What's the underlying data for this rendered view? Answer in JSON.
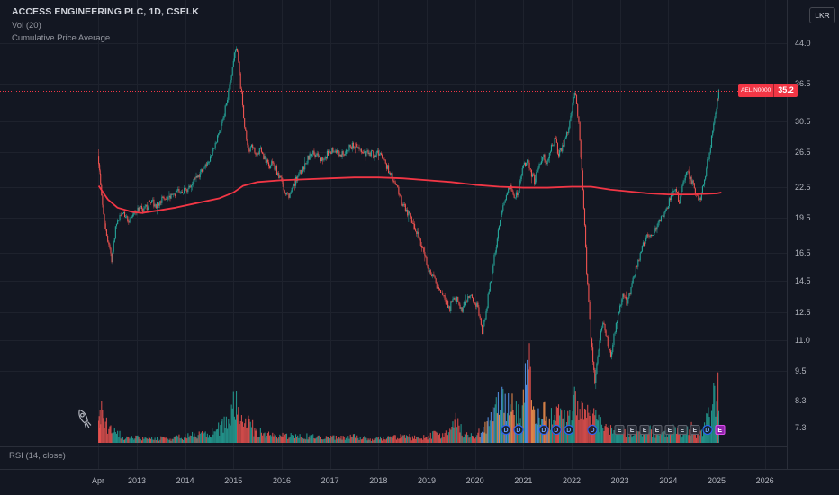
{
  "header": {
    "symbol_title": "ACCESS ENGINEERING PLC, 1D, CSELK",
    "volume_indicator": "Vol (20)",
    "average_indicator": "Cumulative Price Average"
  },
  "axes": {
    "currency_badge": "LKR",
    "price_ticks": [
      "44.0",
      "36.5",
      "30.5",
      "26.5",
      "22.5",
      "19.5",
      "16.5",
      "14.5",
      "12.5",
      "11.0",
      "9.5",
      "8.3",
      "7.3"
    ],
    "time_ticks": [
      {
        "label": "Apr",
        "t": 2012.2
      },
      {
        "label": "2013",
        "t": 2013
      },
      {
        "label": "2014",
        "t": 2014
      },
      {
        "label": "2015",
        "t": 2015
      },
      {
        "label": "2016",
        "t": 2016
      },
      {
        "label": "2017",
        "t": 2017
      },
      {
        "label": "2018",
        "t": 2018
      },
      {
        "label": "2019",
        "t": 2019
      },
      {
        "label": "2020",
        "t": 2020
      },
      {
        "label": "2021",
        "t": 2021
      },
      {
        "label": "2022",
        "t": 2022
      },
      {
        "label": "2023",
        "t": 2023
      },
      {
        "label": "2024",
        "t": 2024
      },
      {
        "label": "2025",
        "t": 2025
      },
      {
        "label": "2026",
        "t": 2026
      }
    ]
  },
  "price_line": {
    "symbol_label": "AEL.N0000",
    "price": "35.2",
    "value": 35.2
  },
  "bottom": {
    "rsi_label": "RSI (14, close)"
  },
  "markers": [
    {
      "kind": "dividend-circle",
      "letter": "D",
      "t": 2020.64
    },
    {
      "kind": "dividend-circle",
      "letter": "D",
      "t": 2020.9
    },
    {
      "kind": "dividend-circle",
      "letter": "D",
      "t": 2021.42
    },
    {
      "kind": "dividend-circle",
      "letter": "D",
      "t": 2021.68
    },
    {
      "kind": "dividend-circle",
      "letter": "D",
      "t": 2021.94
    },
    {
      "kind": "dividend-circle",
      "letter": "D",
      "t": 2022.43
    },
    {
      "kind": "earnings-square",
      "letter": "E",
      "t": 2022.99
    },
    {
      "kind": "earnings-square",
      "letter": "E",
      "t": 2023.25
    },
    {
      "kind": "earnings-square",
      "letter": "E",
      "t": 2023.51
    },
    {
      "kind": "earnings-square",
      "letter": "E",
      "t": 2023.77
    },
    {
      "kind": "earnings-square",
      "letter": "E",
      "t": 2024.03
    },
    {
      "kind": "earnings-square",
      "letter": "E",
      "t": 2024.29
    },
    {
      "kind": "earnings-square",
      "letter": "E",
      "t": 2024.55
    },
    {
      "kind": "dividend-circle",
      "letter": "D",
      "t": 2024.81
    },
    {
      "kind": "earnings-upcoming-square",
      "letter": "E",
      "t": 2025.07
    }
  ],
  "colors": {
    "background": "#131722",
    "grid": "#1e222d",
    "border": "#2a2e39",
    "text_primary": "#d1d4dc",
    "text_secondary": "#9598a1",
    "axis_text": "#b2b5be",
    "up": "#26a69a",
    "down": "#ef5350",
    "average_line": "#f23645",
    "price_badge": "#f23645",
    "accent_blue": "#5b9cf6",
    "alt_volume_orange": "#ff9850",
    "marker_purple": "#8e24aa"
  },
  "chart_data": {
    "type": "candlestick",
    "title": "ACCESS ENGINEERING PLC",
    "symbol": "AEL.N0000",
    "timeframe": "1D",
    "exchange": "CSELK",
    "currency": "LKR",
    "scale": "log",
    "x_range": [
      2012.2,
      2026.4
    ],
    "y_range": [
      7.0,
      46.5
    ],
    "last_price": 35.2,
    "legend": [
      "Vol (20)",
      "Cumulative Price Average"
    ],
    "monthly_closes": [
      [
        2012.21,
        26.0,
        0.22
      ],
      [
        2012.25,
        24.0,
        0.3
      ],
      [
        2012.33,
        19.5,
        0.18
      ],
      [
        2012.42,
        17.5,
        0.12
      ],
      [
        2012.5,
        15.8,
        0.1
      ],
      [
        2012.58,
        18.5,
        0.08
      ],
      [
        2012.67,
        19.5,
        0.06
      ],
      [
        2012.75,
        20.0,
        0.05
      ],
      [
        2012.83,
        19.2,
        0.05
      ],
      [
        2012.92,
        19.6,
        0.05
      ],
      [
        2013.0,
        20.0,
        0.05
      ],
      [
        2013.08,
        20.4,
        0.04
      ],
      [
        2013.17,
        20.1,
        0.04
      ],
      [
        2013.25,
        20.6,
        0.05
      ],
      [
        2013.33,
        21.0,
        0.04
      ],
      [
        2013.42,
        20.6,
        0.04
      ],
      [
        2013.5,
        21.0,
        0.05
      ],
      [
        2013.58,
        21.4,
        0.05
      ],
      [
        2013.67,
        21.1,
        0.04
      ],
      [
        2013.75,
        21.5,
        0.05
      ],
      [
        2013.83,
        21.9,
        0.06
      ],
      [
        2013.92,
        22.3,
        0.06
      ],
      [
        2014.0,
        22.0,
        0.07
      ],
      [
        2014.08,
        22.4,
        0.08
      ],
      [
        2014.17,
        22.9,
        0.08
      ],
      [
        2014.25,
        23.4,
        0.09
      ],
      [
        2014.33,
        23.9,
        0.08
      ],
      [
        2014.42,
        24.4,
        0.09
      ],
      [
        2014.5,
        25.3,
        0.1
      ],
      [
        2014.58,
        26.4,
        0.12
      ],
      [
        2014.67,
        27.8,
        0.14
      ],
      [
        2014.75,
        29.5,
        0.18
      ],
      [
        2014.83,
        31.8,
        0.26
      ],
      [
        2014.92,
        34.8,
        0.32
      ],
      [
        2015.0,
        39.5,
        0.38
      ],
      [
        2015.08,
        43.5,
        0.3
      ],
      [
        2015.17,
        36.0,
        0.24
      ],
      [
        2015.25,
        30.0,
        0.2
      ],
      [
        2015.33,
        26.5,
        0.16
      ],
      [
        2015.42,
        27.2,
        0.12
      ],
      [
        2015.5,
        26.2,
        0.1
      ],
      [
        2015.58,
        26.8,
        0.09
      ],
      [
        2015.67,
        25.6,
        0.08
      ],
      [
        2015.75,
        24.6,
        0.08
      ],
      [
        2015.83,
        25.1,
        0.07
      ],
      [
        2015.92,
        24.2,
        0.07
      ],
      [
        2016.0,
        23.2,
        0.08
      ],
      [
        2016.08,
        22.2,
        0.07
      ],
      [
        2016.17,
        21.3,
        0.08
      ],
      [
        2016.25,
        22.4,
        0.06
      ],
      [
        2016.33,
        23.4,
        0.06
      ],
      [
        2016.42,
        24.1,
        0.06
      ],
      [
        2016.5,
        25.0,
        0.07
      ],
      [
        2016.58,
        25.9,
        0.07
      ],
      [
        2016.67,
        26.4,
        0.06
      ],
      [
        2016.75,
        26.0,
        0.05
      ],
      [
        2016.83,
        25.5,
        0.05
      ],
      [
        2016.92,
        26.0,
        0.05
      ],
      [
        2017.0,
        26.4,
        0.06
      ],
      [
        2017.08,
        26.9,
        0.06
      ],
      [
        2017.17,
        26.5,
        0.05
      ],
      [
        2017.25,
        26.1,
        0.05
      ],
      [
        2017.33,
        26.6,
        0.05
      ],
      [
        2017.42,
        27.0,
        0.06
      ],
      [
        2017.5,
        27.4,
        0.06
      ],
      [
        2017.58,
        26.9,
        0.05
      ],
      [
        2017.67,
        26.5,
        0.05
      ],
      [
        2017.75,
        26.1,
        0.04
      ],
      [
        2017.83,
        26.5,
        0.04
      ],
      [
        2017.92,
        26.1,
        0.04
      ],
      [
        2018.0,
        26.5,
        0.05
      ],
      [
        2018.08,
        26.0,
        0.05
      ],
      [
        2018.17,
        25.1,
        0.06
      ],
      [
        2018.25,
        24.1,
        0.06
      ],
      [
        2018.33,
        23.1,
        0.06
      ],
      [
        2018.42,
        22.1,
        0.06
      ],
      [
        2018.5,
        21.1,
        0.06
      ],
      [
        2018.58,
        20.2,
        0.06
      ],
      [
        2018.67,
        19.6,
        0.05
      ],
      [
        2018.75,
        19.0,
        0.05
      ],
      [
        2018.83,
        18.1,
        0.06
      ],
      [
        2018.92,
        17.1,
        0.06
      ],
      [
        2019.0,
        16.1,
        0.07
      ],
      [
        2019.08,
        15.1,
        0.08
      ],
      [
        2019.17,
        14.6,
        0.08
      ],
      [
        2019.25,
        14.1,
        0.08
      ],
      [
        2019.33,
        13.6,
        0.09
      ],
      [
        2019.42,
        13.1,
        0.1
      ],
      [
        2019.5,
        12.8,
        0.16
      ],
      [
        2019.58,
        13.6,
        0.2
      ],
      [
        2019.67,
        13.1,
        0.14
      ],
      [
        2019.75,
        12.7,
        0.1
      ],
      [
        2019.83,
        13.1,
        0.1
      ],
      [
        2019.92,
        13.5,
        0.08
      ],
      [
        2020.0,
        13.2,
        0.08
      ],
      [
        2020.08,
        12.8,
        0.1
      ],
      [
        2020.17,
        11.2,
        0.14
      ],
      [
        2020.25,
        12.6,
        0.18
      ],
      [
        2020.33,
        14.2,
        0.3
      ],
      [
        2020.42,
        16.2,
        0.38
      ],
      [
        2020.5,
        18.2,
        0.42
      ],
      [
        2020.58,
        20.2,
        0.4
      ],
      [
        2020.67,
        21.6,
        0.36
      ],
      [
        2020.75,
        22.6,
        0.34
      ],
      [
        2020.83,
        21.2,
        0.28
      ],
      [
        2020.92,
        22.2,
        0.3
      ],
      [
        2021.0,
        24.2,
        0.55
      ],
      [
        2021.08,
        25.6,
        1.0
      ],
      [
        2021.17,
        24.2,
        0.45
      ],
      [
        2021.25,
        23.2,
        0.35
      ],
      [
        2021.33,
        24.6,
        0.3
      ],
      [
        2021.42,
        26.0,
        0.28
      ],
      [
        2021.5,
        25.1,
        0.24
      ],
      [
        2021.58,
        26.6,
        0.26
      ],
      [
        2021.67,
        28.2,
        0.3
      ],
      [
        2021.75,
        26.2,
        0.24
      ],
      [
        2021.83,
        27.2,
        0.22
      ],
      [
        2021.92,
        28.8,
        0.26
      ],
      [
        2022.0,
        31.2,
        0.4
      ],
      [
        2022.08,
        35.2,
        0.46
      ],
      [
        2022.17,
        30.2,
        0.36
      ],
      [
        2022.25,
        22.2,
        0.3
      ],
      [
        2022.33,
        15.2,
        0.28
      ],
      [
        2022.42,
        11.2,
        0.26
      ],
      [
        2022.5,
        9.0,
        0.24
      ],
      [
        2022.58,
        10.6,
        0.22
      ],
      [
        2022.67,
        12.1,
        0.2
      ],
      [
        2022.75,
        11.1,
        0.14
      ],
      [
        2022.83,
        10.1,
        0.12
      ],
      [
        2022.92,
        11.6,
        0.12
      ],
      [
        2023.0,
        12.6,
        0.12
      ],
      [
        2023.08,
        13.6,
        0.12
      ],
      [
        2023.17,
        13.1,
        0.1
      ],
      [
        2023.25,
        14.1,
        0.1
      ],
      [
        2023.33,
        15.1,
        0.1
      ],
      [
        2023.42,
        16.1,
        0.1
      ],
      [
        2023.5,
        17.1,
        0.12
      ],
      [
        2023.58,
        18.1,
        0.12
      ],
      [
        2023.67,
        17.6,
        0.1
      ],
      [
        2023.75,
        18.6,
        0.1
      ],
      [
        2023.83,
        19.1,
        0.1
      ],
      [
        2023.92,
        19.6,
        0.1
      ],
      [
        2024.0,
        20.6,
        0.12
      ],
      [
        2024.08,
        21.6,
        0.14
      ],
      [
        2024.17,
        22.1,
        0.12
      ],
      [
        2024.25,
        21.1,
        0.1
      ],
      [
        2024.33,
        22.6,
        0.12
      ],
      [
        2024.42,
        24.2,
        0.16
      ],
      [
        2024.5,
        23.1,
        0.12
      ],
      [
        2024.58,
        22.1,
        0.1
      ],
      [
        2024.67,
        21.1,
        0.12
      ],
      [
        2024.75,
        22.6,
        0.2
      ],
      [
        2024.83,
        25.2,
        0.34
      ],
      [
        2024.92,
        28.2,
        0.42
      ],
      [
        2025.0,
        32.0,
        0.48
      ],
      [
        2025.06,
        35.2,
        0.4
      ]
    ],
    "cumulative_price_average": [
      [
        2012.21,
        22.6
      ],
      [
        2012.4,
        21.2
      ],
      [
        2012.6,
        20.4
      ],
      [
        2012.9,
        20.0
      ],
      [
        2013.1,
        19.9
      ],
      [
        2013.4,
        20.1
      ],
      [
        2013.8,
        20.4
      ],
      [
        2014.2,
        20.8
      ],
      [
        2014.7,
        21.3
      ],
      [
        2015.0,
        21.9
      ],
      [
        2015.2,
        22.6
      ],
      [
        2015.5,
        23.0
      ],
      [
        2016.0,
        23.2
      ],
      [
        2016.5,
        23.3
      ],
      [
        2017.0,
        23.4
      ],
      [
        2017.5,
        23.5
      ],
      [
        2018.0,
        23.5
      ],
      [
        2018.5,
        23.4
      ],
      [
        2019.0,
        23.2
      ],
      [
        2019.5,
        23.0
      ],
      [
        2020.0,
        22.7
      ],
      [
        2020.5,
        22.5
      ],
      [
        2021.0,
        22.4
      ],
      [
        2021.5,
        22.4
      ],
      [
        2022.0,
        22.5
      ],
      [
        2022.4,
        22.5
      ],
      [
        2022.8,
        22.2
      ],
      [
        2023.2,
        22.0
      ],
      [
        2023.6,
        21.8
      ],
      [
        2024.0,
        21.7
      ],
      [
        2024.5,
        21.7
      ],
      [
        2025.0,
        21.8
      ],
      [
        2025.1,
        21.9
      ]
    ]
  }
}
